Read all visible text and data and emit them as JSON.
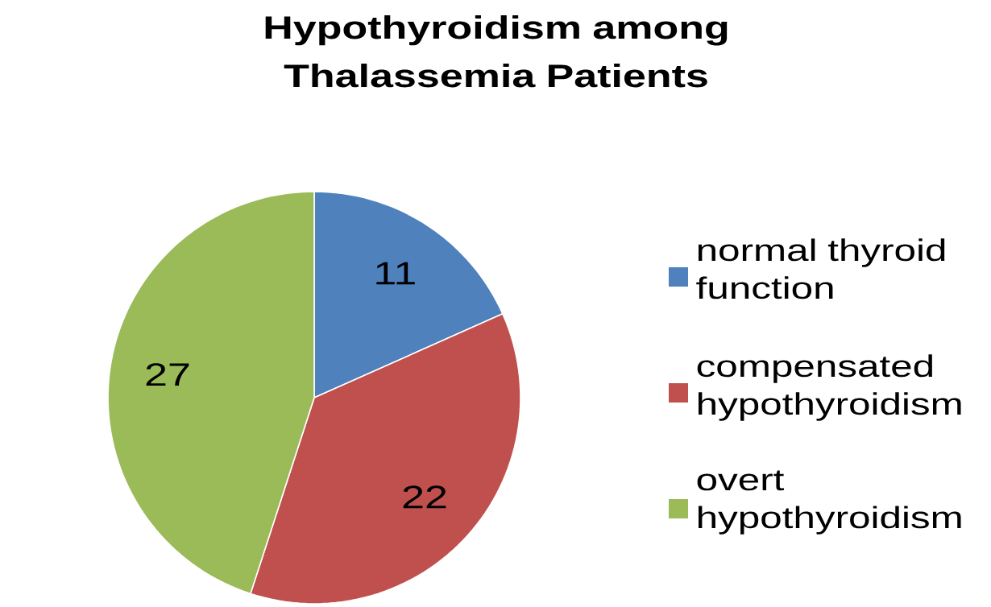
{
  "chart_data": {
    "type": "pie",
    "title": "Hypothyroidism among Thalassemia Patients",
    "categories": [
      "normal thyroid function",
      "compensated hypothyroidism",
      "overt hypothyroidism"
    ],
    "values": [
      11,
      22,
      27
    ],
    "colors": [
      "#4f81bd",
      "#c0504d",
      "#9bbb59"
    ],
    "data_labels": true,
    "legend": "right"
  }
}
